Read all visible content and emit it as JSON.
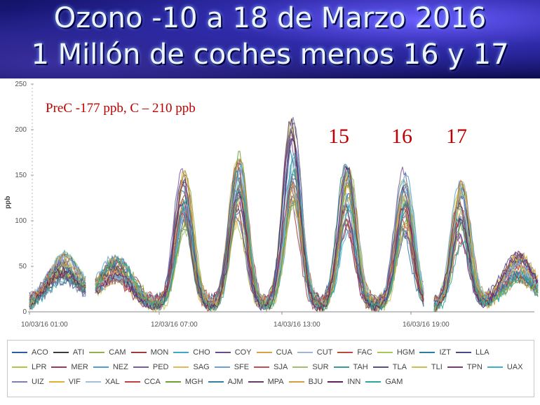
{
  "title_line1": "Ozono -10 a 18 de Marzo 2016",
  "title_line2": "1 Millón de coches menos 16 y 17",
  "chart_data": {
    "type": "line",
    "ylabel": "ppb",
    "ylim": [
      0,
      250
    ],
    "yticks": [
      "250",
      "200",
      "150",
      "100",
      "50",
      "0"
    ],
    "xticks": [
      "10/03/16 01:00",
      "12/03/16 07:00",
      "14/03/16 13:00",
      "16/03/16 19:00"
    ],
    "annotation": "PreC -177 ppb, C – 210 ppb",
    "day_labels": [
      "15",
      "16",
      "17"
    ],
    "daily_peaks_ppb": [
      60,
      58,
      155,
      170,
      210,
      155,
      150,
      137,
      60
    ],
    "legend": [
      "ACO",
      "ATI",
      "CAM",
      "MON",
      "CHO",
      "COY",
      "CUA",
      "CUT",
      "FAC",
      "HGM",
      "IZT",
      "LLA",
      "LPR",
      "MER",
      "NEZ",
      "PED",
      "SAG",
      "SFE",
      "SJA",
      "SUR",
      "TAH",
      "TLA",
      "TLI",
      "TPN",
      "UAX",
      "UIZ",
      "VIF",
      "XAL",
      "CCA",
      "MGH",
      "AJM",
      "MPA",
      "BJU",
      "INN",
      "GAM"
    ],
    "colors": [
      "#2d5aa8",
      "#3b3b3b",
      "#8fb24a",
      "#a23a3a",
      "#3fa7c9",
      "#6b4b8c",
      "#e0a040",
      "#9fb7d6",
      "#b84a3a",
      "#a6c85a",
      "#2f7d9e",
      "#4a4a8a",
      "#b7c24a",
      "#9a3a5a",
      "#4f9fd1",
      "#7a5a9a",
      "#e2b95a",
      "#6b9fd6",
      "#c0504d",
      "#a0c070",
      "#3a9a9a",
      "#50508a",
      "#c8c050",
      "#7a3a7a",
      "#40b0c8",
      "#8080b0",
      "#e0b030",
      "#a0c0e0",
      "#c04040",
      "#70a030",
      "#3080a0",
      "#6a3a6a",
      "#d0a040",
      "#602060",
      "#2aa89a"
    ]
  }
}
